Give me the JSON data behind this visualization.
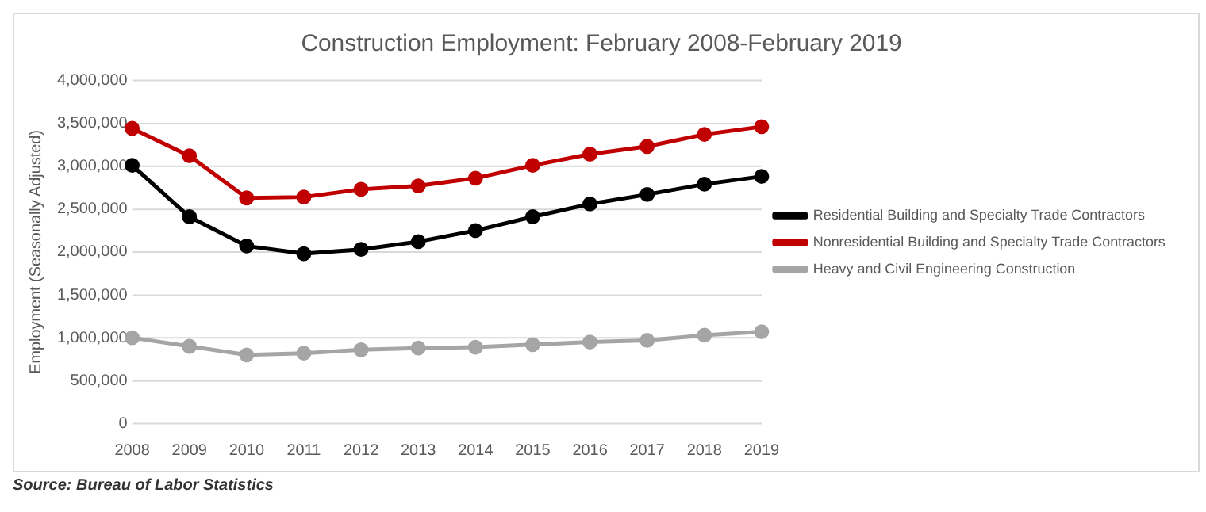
{
  "chart_data": {
    "type": "line",
    "title": "Construction Employment: February 2008-February 2019",
    "ylabel": "Employment (Seasonally Adjusted)",
    "categories": [
      "2008",
      "2009",
      "2010",
      "2011",
      "2012",
      "2013",
      "2014",
      "2015",
      "2016",
      "2017",
      "2018",
      "2019"
    ],
    "series": [
      {
        "name": "Residential Building and Specialty Trade Contractors",
        "color": "#000000",
        "values": [
          3010000,
          2410000,
          2070000,
          1980000,
          2030000,
          2120000,
          2250000,
          2410000,
          2560000,
          2670000,
          2790000,
          2880000
        ]
      },
      {
        "name": "Nonresidential Building and Specialty Trade Contractors",
        "color": "#c00000",
        "values": [
          3440000,
          3120000,
          2630000,
          2640000,
          2730000,
          2770000,
          2860000,
          3010000,
          3140000,
          3230000,
          3370000,
          3460000
        ]
      },
      {
        "name": "Heavy and Civil Engineering Construction",
        "color": "#a5a5a5",
        "values": [
          1000000,
          900000,
          800000,
          820000,
          860000,
          880000,
          890000,
          920000,
          950000,
          970000,
          1030000,
          1070000
        ]
      }
    ],
    "ylim": [
      0,
      4000000
    ],
    "yticks": [
      0,
      {
        "value": 500000,
        "label": "500,000"
      },
      {
        "value": 1000000,
        "label": "1,000,000"
      },
      {
        "value": 1500000,
        "label": "1,500,000"
      },
      {
        "value": 2000000,
        "label": "2,000,000"
      },
      {
        "value": 2500000,
        "label": "2,500,000"
      },
      {
        "value": 3000000,
        "label": "3,000,000"
      },
      {
        "value": 3500000,
        "label": "3,500,000"
      },
      {
        "value": 4000000,
        "label": "4,000,000"
      }
    ],
    "grid": "y",
    "legend": "right",
    "marker": "circle",
    "line_style": "solid",
    "annotations": [
      "Source: Bureau of Labor Statistics"
    ]
  }
}
